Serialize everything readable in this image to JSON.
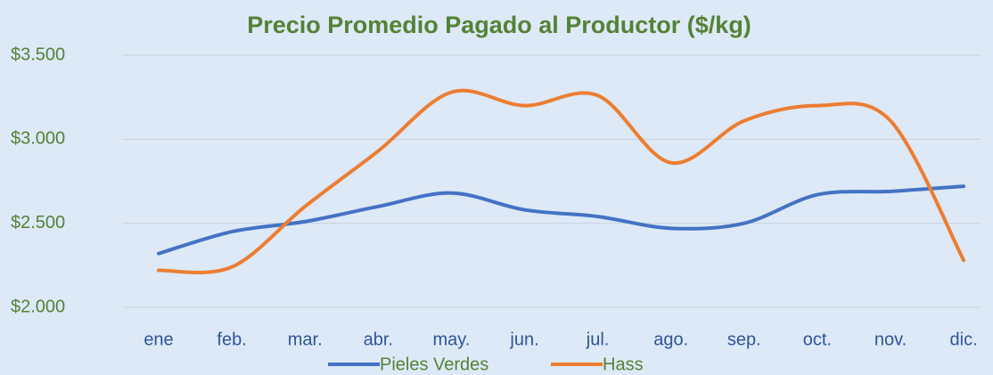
{
  "chart_data": {
    "type": "line",
    "title": "Precio Promedio Pagado al Productor ($/kg)",
    "categories": [
      "ene",
      "feb.",
      "mar.",
      "abr.",
      "may.",
      "jun.",
      "jul.",
      "ago.",
      "sep.",
      "oct.",
      "nov.",
      "dic."
    ],
    "series": [
      {
        "name": "Pieles Verdes",
        "color": "#4472c4",
        "values": [
          2320,
          2450,
          2510,
          2600,
          2680,
          2580,
          2540,
          2470,
          2500,
          2670,
          2690,
          2720
        ]
      },
      {
        "name": "Hass",
        "color": "#ed7d31",
        "values": [
          2220,
          2240,
          2600,
          2930,
          3280,
          3200,
          3260,
          2860,
          3110,
          3200,
          3110,
          2280
        ]
      }
    ],
    "ylim": [
      2000,
      3500
    ],
    "yticks": [
      {
        "value": 2000,
        "label": "$2.000"
      },
      {
        "value": 2500,
        "label": "$2.500"
      },
      {
        "value": 3000,
        "label": "$3.000"
      },
      {
        "value": 3500,
        "label": "$3.500"
      }
    ],
    "grid": true,
    "legend": "bottom"
  }
}
